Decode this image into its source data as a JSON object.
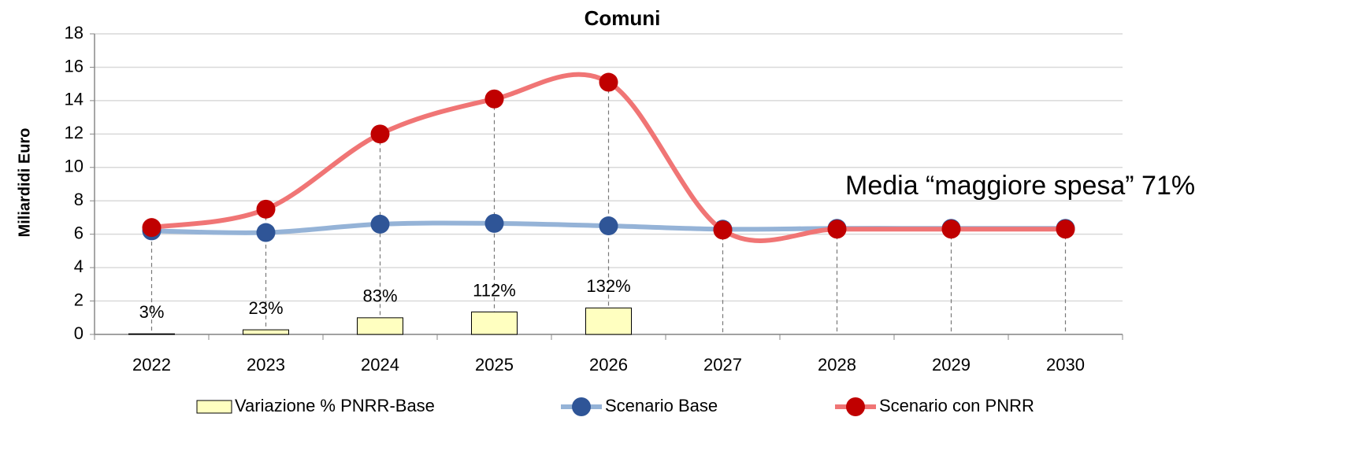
{
  "chart_data": {
    "type": "bar-line",
    "title": "Comuni",
    "y_label": "Miliardidi Euro",
    "annotation": "Media “maggiore spesa” 71%",
    "categories": [
      "2022",
      "2023",
      "2024",
      "2025",
      "2026",
      "2027",
      "2028",
      "2029",
      "2030"
    ],
    "ylim": [
      0,
      18
    ],
    "yticks": [
      0,
      2,
      4,
      6,
      8,
      10,
      12,
      14,
      16,
      18
    ],
    "y2lim": [
      0,
      1500
    ],
    "grid": true,
    "legend": "bottom",
    "series": [
      {
        "name": "Variazione % PNRR-Base",
        "type": "bar",
        "axis": "y2",
        "color": "#ffffc0",
        "values": [
          3,
          23,
          83,
          112,
          132,
          null,
          null,
          null,
          null
        ],
        "value_labels": [
          "3%",
          "23%",
          "83%",
          "112%",
          "132%",
          null,
          null,
          null,
          null
        ]
      },
      {
        "name": "Scenario Base",
        "type": "line",
        "color": "#95b3d7",
        "marker_color": "#2f5597",
        "values": [
          6.2,
          6.1,
          6.6,
          6.65,
          6.5,
          6.3,
          6.35,
          6.35,
          6.35
        ]
      },
      {
        "name": "Scenario con PNRR",
        "type": "line",
        "color": "#f07575",
        "marker_color": "#c00000",
        "values": [
          6.4,
          7.5,
          12.0,
          14.1,
          15.1,
          6.25,
          6.3,
          6.3,
          6.3
        ]
      }
    ]
  }
}
